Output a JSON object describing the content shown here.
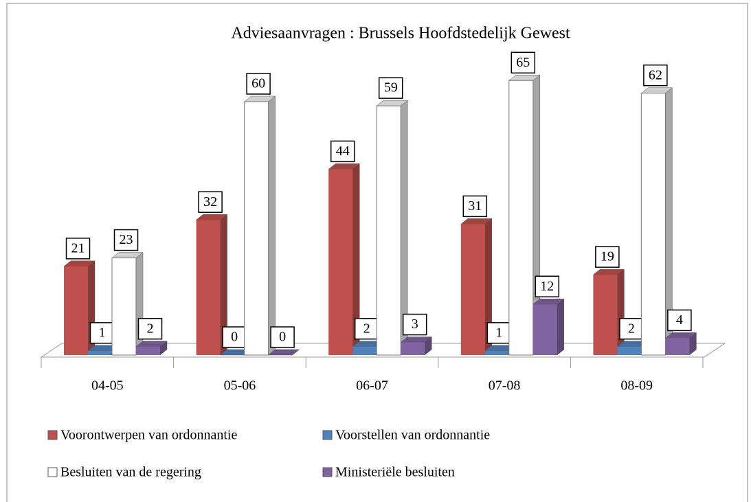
{
  "chart_data": {
    "type": "bar3d",
    "title": "Adviesaanvragen : Brussels Hoofdstedelijk Gewest",
    "categories": [
      "04-05",
      "05-06",
      "06-07",
      "07-08",
      "08-09"
    ],
    "series": [
      {
        "name": "Voorontwerpen van ordonnantie",
        "color": "#c0504d",
        "values": [
          21,
          32,
          44,
          31,
          19
        ]
      },
      {
        "name": "Voorstellen van ordonnantie",
        "color": "#4f81bd",
        "values": [
          1,
          0,
          2,
          1,
          2
        ]
      },
      {
        "name": "Besluiten van de regering",
        "color": "#ffffff",
        "values": [
          23,
          60,
          59,
          65,
          62
        ]
      },
      {
        "name": "Ministeriële besluiten",
        "color": "#8064a2",
        "values": [
          2,
          0,
          3,
          12,
          4
        ]
      }
    ]
  }
}
